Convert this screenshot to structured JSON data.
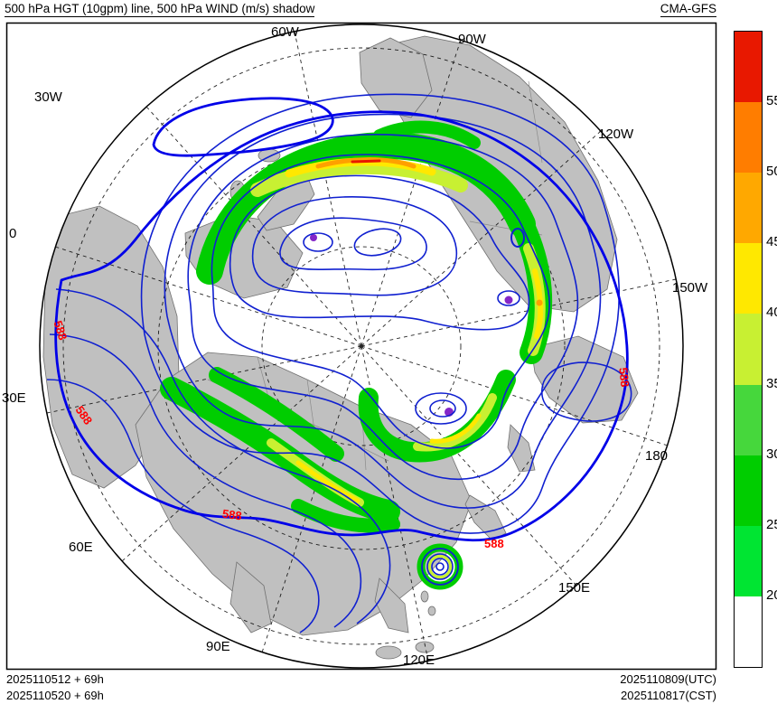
{
  "header": {
    "title": "500 hPa HGT (10gpm) line, 500 hPa WIND (m/s) shadow",
    "model": "CMA-GFS"
  },
  "footer": {
    "init_utc": "2025110512 + 69h",
    "init_cst": "2025110520 + 69h",
    "valid_utc": "2025110809(UTC)",
    "valid_cst": "2025110817(CST)"
  },
  "map": {
    "lon_labels": [
      "0",
      "30W",
      "60W",
      "90W",
      "120W",
      "150W",
      "180",
      "150E",
      "120E",
      "90E",
      "60E",
      "30E"
    ],
    "contour_labels": [
      "588",
      "588",
      "588",
      "588",
      "588"
    ],
    "land_color": "#c0c0c0",
    "contour_color": "#1020d0",
    "highlight_contour_color": "#0000e8"
  },
  "colorbar": {
    "ticks": [
      "55",
      "50",
      "45",
      "40",
      "35",
      "30",
      "25",
      "20"
    ],
    "colors_top_to_bottom": [
      "#e81800",
      "#ff7d00",
      "#ffa800",
      "#ffe800",
      "#c8f032",
      "#46d73c",
      "#00cd00",
      "#00e532",
      "#ffffff"
    ]
  },
  "chart_data": {
    "type": "heatmap",
    "title": "500 hPa HGT (10gpm) line, 500 hPa WIND (m/s) shadow",
    "model": "CMA-GFS",
    "projection": "north-polar-stereographic",
    "contour_variable": "500 hPa geopotential height (10 gpm)",
    "shading_variable": "500 hPa wind speed (m/s)",
    "colorbar_levels": [
      20,
      25,
      30,
      35,
      40,
      45,
      50,
      55
    ],
    "colorbar_colors_low_to_high": [
      "#ffffff",
      "#00e532",
      "#00cd00",
      "#46d73c",
      "#c8f032",
      "#ffe800",
      "#ffa800",
      "#ff7d00",
      "#e81800"
    ],
    "labeled_contour_value": "588",
    "longitude_labels": [
      "0",
      "30W",
      "60W",
      "90W",
      "120W",
      "150W",
      "180",
      "150E",
      "120E",
      "90E",
      "60E",
      "30E"
    ],
    "init_time_utc": "2025110512 + 69h",
    "init_time_cst": "2025110520 + 69h",
    "valid_time_utc": "2025110809(UTC)",
    "valid_time_cst": "2025110817(CST)",
    "legend_position": "right",
    "grid": "dashed graticule every 30 degrees longitude"
  }
}
